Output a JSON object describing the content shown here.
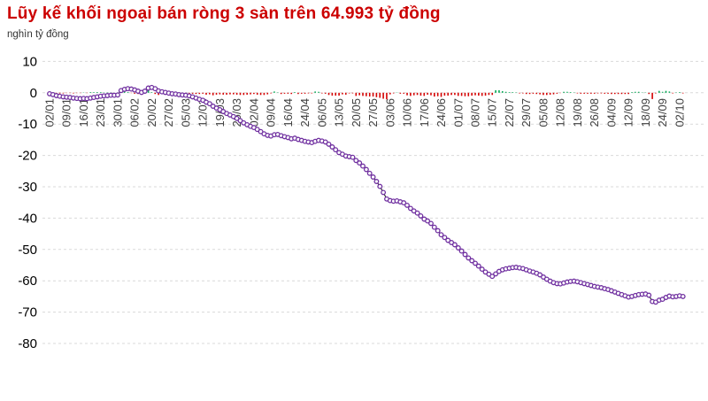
{
  "chart": {
    "title": "Lũy kế khối ngoại bán ròng 3 sàn trên 64.993 tỷ đồng",
    "unit": "nghìn tỷ đồng"
  },
  "chart_data": {
    "type": "line",
    "title": "Lũy kế khối ngoại bán ròng 3 sàn trên 64.993 tỷ đồng",
    "ylabel": "nghìn tỷ đồng",
    "xlabel": "",
    "ylim": [
      -80,
      10
    ],
    "grid": "dashed-horizontal",
    "legend": "none",
    "label_every": 5,
    "x_tick_labels": [
      "02/01",
      "09/01",
      "16/01",
      "23/01",
      "30/01",
      "06/02",
      "20/02",
      "27/02",
      "05/03",
      "12/03",
      "19/03",
      "26/03",
      "02/04",
      "09/04",
      "16/04",
      "24/04",
      "06/05",
      "13/05",
      "20/05",
      "27/05",
      "03/06",
      "10/06",
      "17/06",
      "24/06",
      "01/07",
      "08/07",
      "15/07",
      "22/07",
      "29/07",
      "05/08",
      "12/08",
      "19/08",
      "26/08",
      "04/09",
      "12/09",
      "18/09",
      "24/09",
      "02/10"
    ],
    "y_ticks": [
      10,
      0,
      -10,
      -20,
      -30,
      -40,
      -50,
      -60,
      -70,
      -80
    ],
    "series": [
      {
        "name": "cumulative-foreign-net-value",
        "style": "line-with-open-circle-markers",
        "values": [
          -0.3,
          -0.6,
          -0.9,
          -1.1,
          -1.3,
          -1.4,
          -1.5,
          -1.7,
          -1.8,
          -1.9,
          -1.8,
          -1.9,
          -1.7,
          -1.5,
          -1.3,
          -1.1,
          -1.0,
          -0.9,
          -0.8,
          -0.8,
          -0.7,
          0.7,
          1.1,
          1.3,
          1.2,
          0.9,
          0.5,
          0.1,
          0.5,
          1.5,
          1.7,
          1.3,
          0.6,
          0.3,
          0.1,
          -0.1,
          -0.3,
          -0.4,
          -0.6,
          -0.7,
          -0.8,
          -1.0,
          -1.3,
          -1.7,
          -2.1,
          -2.4,
          -3.0,
          -3.5,
          -4.3,
          -4.9,
          -5.4,
          -6.0,
          -6.6,
          -7.1,
          -7.6,
          -8.2,
          -8.9,
          -9.6,
          -10.2,
          -10.7,
          -11.1,
          -11.7,
          -12.4,
          -13.1,
          -13.6,
          -13.8,
          -13.4,
          -13.3,
          -13.7,
          -14.0,
          -14.3,
          -14.7,
          -14.5,
          -14.9,
          -15.2,
          -15.5,
          -15.7,
          -15.9,
          -15.5,
          -15.2,
          -15.4,
          -15.7,
          -16.4,
          -17.3,
          -18.2,
          -19.1,
          -19.6,
          -20.2,
          -20.4,
          -20.6,
          -21.6,
          -22.4,
          -23.4,
          -24.5,
          -25.7,
          -26.9,
          -28.3,
          -29.9,
          -31.8,
          -33.9,
          -34.4,
          -34.6,
          -34.5,
          -34.8,
          -35.1,
          -35.9,
          -36.9,
          -37.7,
          -38.4,
          -39.3,
          -40.3,
          -40.9,
          -41.7,
          -42.9,
          -44.0,
          -45.3,
          -46.2,
          -47.1,
          -47.8,
          -48.5,
          -49.5,
          -50.5,
          -51.6,
          -52.7,
          -53.6,
          -54.4,
          -55.3,
          -56.3,
          -57.2,
          -57.9,
          -58.6,
          -57.8,
          -57.0,
          -56.5,
          -56.2,
          -56.0,
          -55.8,
          -55.7,
          -55.9,
          -56.1,
          -56.5,
          -56.9,
          -57.2,
          -57.6,
          -58.1,
          -58.8,
          -59.5,
          -60.1,
          -60.6,
          -60.9,
          -61.0,
          -60.7,
          -60.4,
          -60.2,
          -60.1,
          -60.3,
          -60.6,
          -60.9,
          -61.2,
          -61.5,
          -61.8,
          -62.0,
          -62.2,
          -62.5,
          -62.8,
          -63.2,
          -63.6,
          -64.0,
          -64.4,
          -64.8,
          -65.2,
          -65.0,
          -64.7,
          -64.4,
          -64.3,
          -64.2,
          -64.6,
          -66.6,
          -66.8,
          -66.2,
          -65.9,
          -65.3,
          -64.9,
          -65.1,
          -65.0,
          -64.8,
          -65.0
        ]
      },
      {
        "name": "daily-foreign-net-value-bars",
        "style": "bars-from-zero",
        "derived": "difference of cumulative series; red when negative, green when positive"
      }
    ],
    "colors": {
      "title": "#cc0000",
      "line": "#262626",
      "marker_ring": "#7030a0",
      "marker_fill": "#ffffff",
      "bar_negative": "#d40000",
      "bar_positive": "#00a651",
      "gridline": "#d9d9d9",
      "y_tick_text": "#000000",
      "x_tick_text": "#3f3f3f"
    }
  }
}
